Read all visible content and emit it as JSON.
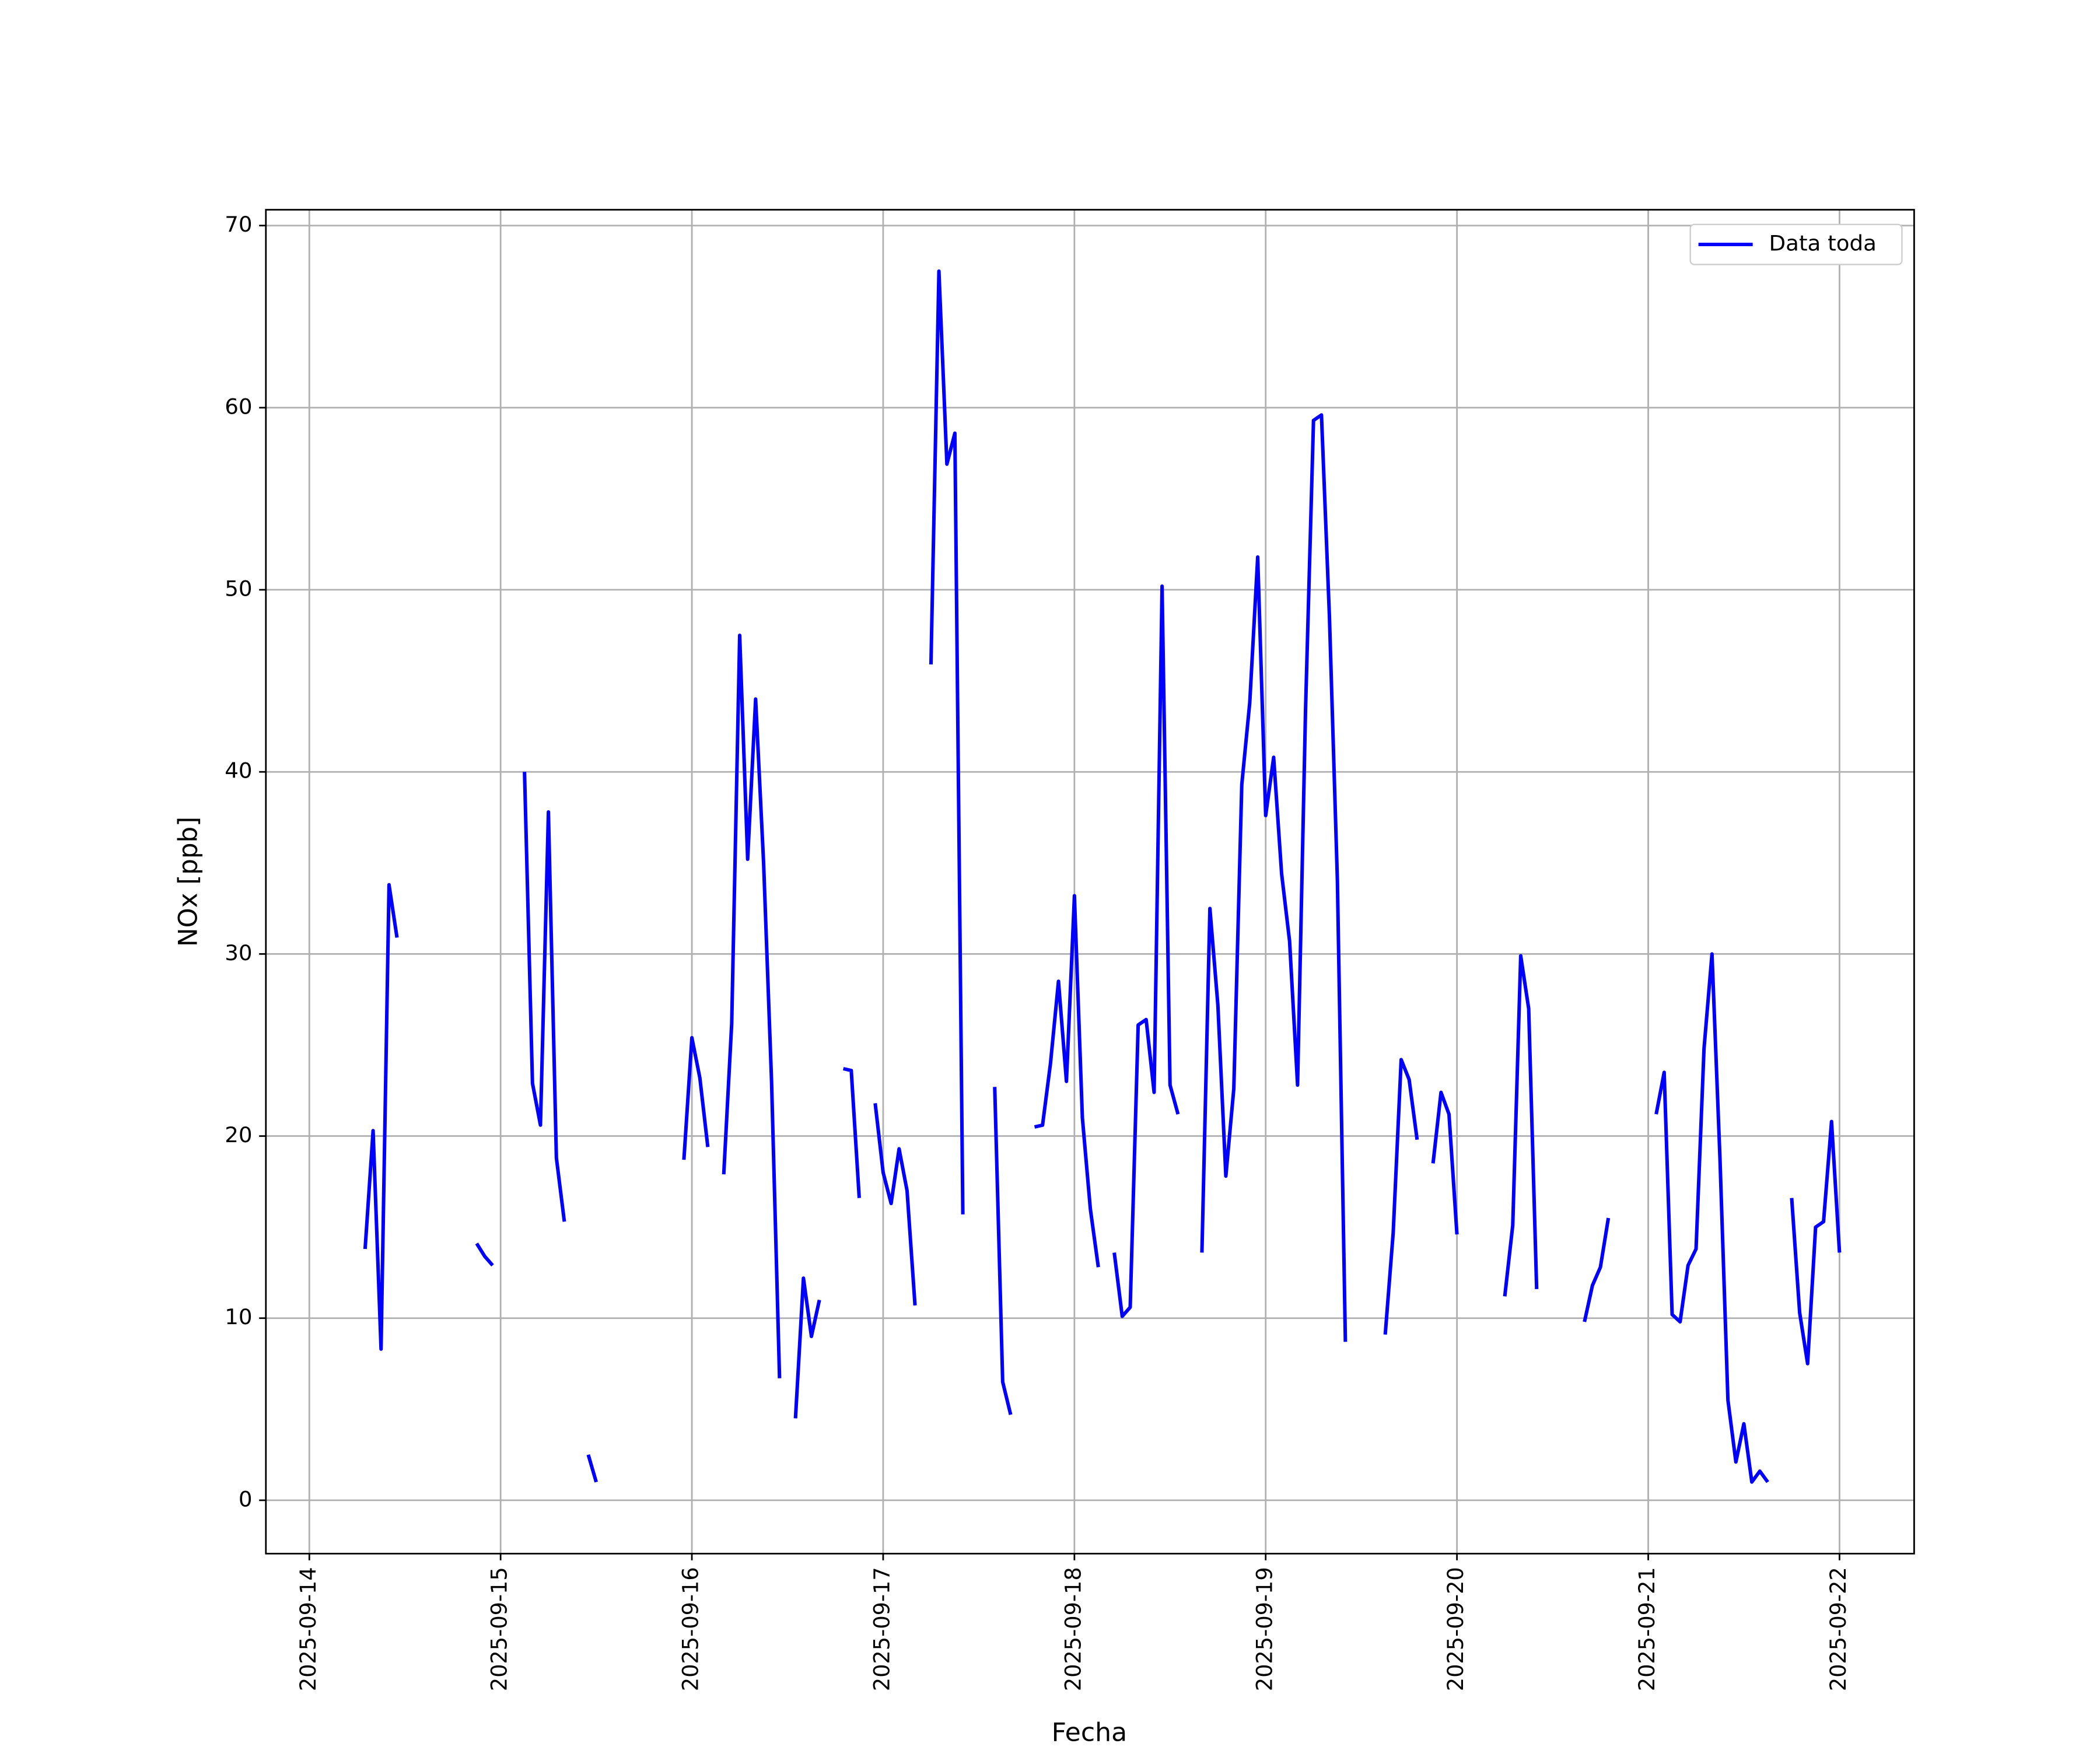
{
  "chart_data": {
    "type": "line",
    "xlabel": "Fecha",
    "ylabel": "NOx [ppb]",
    "x": [
      "2025-09-14 07:00",
      "2025-09-14 08:00",
      "2025-09-14 09:00",
      "2025-09-14 10:00",
      "2025-09-14 11:00",
      "2025-09-14 16:00",
      "2025-09-14 21:00",
      "2025-09-14 22:00",
      "2025-09-14 23:00",
      "2025-09-15 01:00",
      "2025-09-15 03:00",
      "2025-09-15 04:00",
      "2025-09-15 05:00",
      "2025-09-15 06:00",
      "2025-09-15 07:00",
      "2025-09-15 08:00",
      "2025-09-15 09:00",
      "2025-09-15 11:00",
      "2025-09-15 12:00",
      "2025-09-15 16:00",
      "2025-09-15 23:00",
      "2025-09-16 00:00",
      "2025-09-16 01:00",
      "2025-09-16 02:00",
      "2025-09-16 03:00",
      "2025-09-16 04:00",
      "2025-09-16 05:00",
      "2025-09-16 06:00",
      "2025-09-16 07:00",
      "2025-09-16 08:00",
      "2025-09-16 09:00",
      "2025-09-16 10:00",
      "2025-09-16 11:00",
      "2025-09-16 12:00",
      "2025-09-16 13:00",
      "2025-09-16 14:00",
      "2025-09-16 15:00",
      "2025-09-16 16:00",
      "2025-09-16 17:00",
      "2025-09-16 19:00",
      "2025-09-16 20:00",
      "2025-09-16 21:00",
      "2025-09-16 22:00",
      "2025-09-16 23:00",
      "2025-09-17 00:00",
      "2025-09-17 01:00",
      "2025-09-17 02:00",
      "2025-09-17 03:00",
      "2025-09-17 04:00",
      "2025-09-17 05:00",
      "2025-09-17 06:00",
      "2025-09-17 07:00",
      "2025-09-17 08:00",
      "2025-09-17 09:00",
      "2025-09-17 10:00",
      "2025-09-17 12:00",
      "2025-09-17 14:00",
      "2025-09-17 15:00",
      "2025-09-17 16:00",
      "2025-09-17 17:00",
      "2025-09-17 19:00",
      "2025-09-17 20:00",
      "2025-09-17 21:00",
      "2025-09-17 22:00",
      "2025-09-17 23:00",
      "2025-09-18 00:00",
      "2025-09-18 01:00",
      "2025-09-18 02:00",
      "2025-09-18 03:00",
      "2025-09-18 04:00",
      "2025-09-18 05:00",
      "2025-09-18 06:00",
      "2025-09-18 07:00",
      "2025-09-18 08:00",
      "2025-09-18 09:00",
      "2025-09-18 10:00",
      "2025-09-18 11:00",
      "2025-09-18 12:00",
      "2025-09-18 13:00",
      "2025-09-18 14:00",
      "2025-09-18 16:00",
      "2025-09-18 17:00",
      "2025-09-18 18:00",
      "2025-09-18 19:00",
      "2025-09-18 20:00",
      "2025-09-18 21:00",
      "2025-09-18 22:00",
      "2025-09-18 23:00",
      "2025-09-19 00:00",
      "2025-09-19 01:00",
      "2025-09-19 02:00",
      "2025-09-19 03:00",
      "2025-09-19 04:00",
      "2025-09-19 05:00",
      "2025-09-19 06:00",
      "2025-09-19 07:00",
      "2025-09-19 08:00",
      "2025-09-19 09:00",
      "2025-09-19 10:00",
      "2025-09-19 12:00",
      "2025-09-19 15:00",
      "2025-09-19 16:00",
      "2025-09-19 17:00",
      "2025-09-19 18:00",
      "2025-09-19 19:00",
      "2025-09-19 20:00",
      "2025-09-19 21:00",
      "2025-09-19 22:00",
      "2025-09-19 23:00",
      "2025-09-20 00:00",
      "2025-09-20 03:00",
      "2025-09-20 06:00",
      "2025-09-20 07:00",
      "2025-09-20 08:00",
      "2025-09-20 09:00",
      "2025-09-20 10:00",
      "2025-09-20 13:00",
      "2025-09-20 16:00",
      "2025-09-20 17:00",
      "2025-09-20 18:00",
      "2025-09-20 19:00",
      "2025-09-20 22:00",
      "2025-09-21 01:00",
      "2025-09-21 02:00",
      "2025-09-21 03:00",
      "2025-09-21 04:00",
      "2025-09-21 05:00",
      "2025-09-21 06:00",
      "2025-09-21 07:00",
      "2025-09-21 08:00",
      "2025-09-21 09:00",
      "2025-09-21 10:00",
      "2025-09-21 11:00",
      "2025-09-21 12:00",
      "2025-09-21 13:00",
      "2025-09-21 14:00",
      "2025-09-21 15:00",
      "2025-09-21 16:00",
      "2025-09-21 18:00",
      "2025-09-21 19:00",
      "2025-09-21 20:00",
      "2025-09-21 21:00",
      "2025-09-21 22:00",
      "2025-09-21 23:00",
      "2025-09-22 00:00"
    ],
    "series": [
      {
        "name": "Data toda",
        "color": "#0000ff",
        "values": [
          13.8,
          20.3,
          8.3,
          33.8,
          30.9,
          null,
          14.1,
          13.4,
          12.9,
          null,
          40.0,
          22.9,
          20.6,
          37.8,
          18.8,
          15.3,
          null,
          2.5,
          1.0,
          null,
          18.7,
          25.4,
          23.2,
          19.4,
          null,
          17.9,
          26.2,
          47.5,
          35.2,
          44.0,
          35.0,
          23.0,
          6.7,
          null,
          4.5,
          12.2,
          9.0,
          11.0,
          null,
          23.7,
          23.6,
          16.6,
          null,
          21.8,
          18.0,
          16.3,
          19.3,
          17.0,
          10.7,
          null,
          45.9,
          67.5,
          56.9,
          58.6,
          15.7,
          null,
          22.7,
          6.5,
          4.7,
          null,
          20.5,
          20.6,
          24.0,
          28.5,
          23.0,
          33.2,
          21.0,
          16.0,
          12.8,
          null,
          13.6,
          10.1,
          10.6,
          26.1,
          26.4,
          22.4,
          50.2,
          22.8,
          21.2,
          null,
          13.6,
          32.5,
          27.2,
          17.8,
          22.6,
          39.3,
          43.8,
          51.8,
          37.6,
          40.8,
          34.4,
          30.7,
          22.8,
          43.4,
          59.3,
          59.6,
          48.5,
          34.0,
          8.7,
          null,
          9.1,
          14.7,
          24.2,
          23.1,
          19.8,
          null,
          18.5,
          22.4,
          21.2,
          14.6,
          null,
          11.2,
          15.1,
          29.9,
          27.0,
          11.6,
          null,
          9.8,
          11.8,
          12.8,
          15.5,
          null,
          21.2,
          23.5,
          10.2,
          9.8,
          12.9,
          13.8,
          24.8,
          30.0,
          18.8,
          5.5,
          2.1,
          4.2,
          1.0,
          1.6,
          1.0,
          null,
          16.6,
          10.3,
          7.5,
          15.0,
          15.3,
          20.8,
          13.6
        ]
      }
    ],
    "xlim": [
      "2025-09-13 18:33",
      "2025-09-22 09:22"
    ],
    "xticks": [
      "2025-09-14",
      "2025-09-15",
      "2025-09-16",
      "2025-09-17",
      "2025-09-18",
      "2025-09-19",
      "2025-09-20",
      "2025-09-21",
      "2025-09-22"
    ],
    "ylim": [
      -2.93,
      70.87
    ],
    "yticks": [
      0,
      10,
      20,
      30,
      40,
      50,
      60,
      70
    ],
    "grid": true,
    "legend": "upper right"
  }
}
